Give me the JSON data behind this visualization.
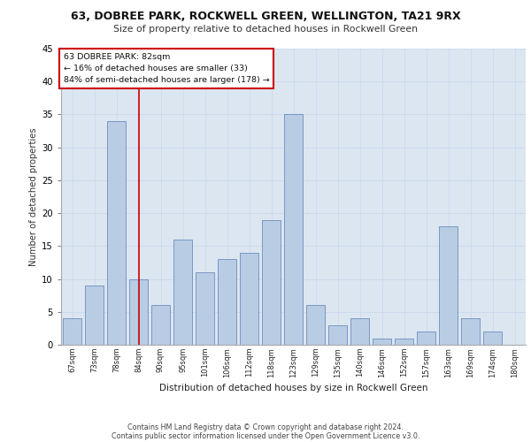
{
  "title1": "63, DOBREE PARK, ROCKWELL GREEN, WELLINGTON, TA21 9RX",
  "title2": "Size of property relative to detached houses in Rockwell Green",
  "xlabel": "Distribution of detached houses by size in Rockwell Green",
  "ylabel": "Number of detached properties",
  "categories": [
    "67sqm",
    "73sqm",
    "78sqm",
    "84sqm",
    "90sqm",
    "95sqm",
    "101sqm",
    "106sqm",
    "112sqm",
    "118sqm",
    "123sqm",
    "129sqm",
    "135sqm",
    "140sqm",
    "146sqm",
    "152sqm",
    "157sqm",
    "163sqm",
    "169sqm",
    "174sqm",
    "180sqm"
  ],
  "values": [
    4,
    9,
    34,
    10,
    6,
    16,
    11,
    13,
    14,
    19,
    35,
    6,
    3,
    4,
    1,
    1,
    2,
    18,
    4,
    2,
    0
  ],
  "bar_color": "#b8cce4",
  "bar_edge_color": "#5a7fb5",
  "grid_color": "#c8d8ec",
  "background_color": "#dce6f1",
  "annotation_line_x": "84sqm",
  "annotation_line_color": "#cc0000",
  "annotation_box_text": "63 DOBREE PARK: 82sqm\n← 16% of detached houses are smaller (33)\n84% of semi-detached houses are larger (178) →",
  "annotation_box_color": "#cc0000",
  "ylim": [
    0,
    45
  ],
  "yticks": [
    0,
    5,
    10,
    15,
    20,
    25,
    30,
    35,
    40,
    45
  ],
  "footer1": "Contains HM Land Registry data © Crown copyright and database right 2024.",
  "footer2": "Contains public sector information licensed under the Open Government Licence v3.0."
}
